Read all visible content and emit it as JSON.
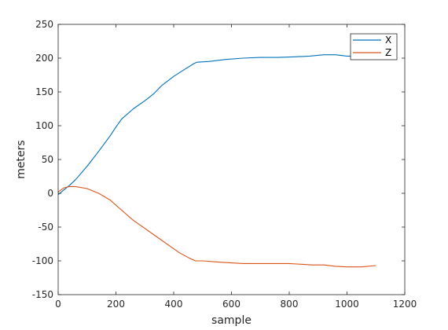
{
  "chart_data": {
    "type": "line",
    "xlabel": "sample",
    "ylabel": "meters",
    "xlim": [
      0,
      1200
    ],
    "ylim": [
      -150,
      250
    ],
    "xticks": [
      0,
      200,
      400,
      600,
      800,
      1000,
      1200
    ],
    "yticks": [
      -150,
      -100,
      -50,
      0,
      50,
      100,
      150,
      200,
      250
    ],
    "grid": false,
    "legend_position": "top-right",
    "series": [
      {
        "name": "X",
        "color": "#0072BD",
        "x": [
          0,
          20,
          40,
          60,
          100,
          140,
          180,
          200,
          220,
          260,
          300,
          330,
          360,
          400,
          440,
          470,
          480,
          520,
          580,
          640,
          700,
          760,
          820,
          870,
          920,
          960,
          1000,
          1050,
          1100
        ],
        "y": [
          -2,
          5,
          12,
          20,
          40,
          62,
          85,
          98,
          110,
          125,
          137,
          147,
          160,
          173,
          184,
          192,
          194,
          195,
          198,
          200,
          201,
          201,
          202,
          203,
          205,
          205,
          203,
          203,
          204
        ]
      },
      {
        "name": "Z",
        "color": "#D95319",
        "x": [
          0,
          20,
          40,
          60,
          100,
          140,
          180,
          220,
          260,
          300,
          340,
          380,
          420,
          450,
          475,
          500,
          560,
          640,
          720,
          800,
          880,
          920,
          960,
          1000,
          1050,
          1100
        ],
        "y": [
          2,
          8,
          10,
          10,
          7,
          0,
          -10,
          -25,
          -40,
          -52,
          -64,
          -76,
          -88,
          -95,
          -100,
          -100,
          -102,
          -104,
          -104,
          -104,
          -106,
          -106,
          -108,
          -109,
          -109,
          -107
        ]
      }
    ]
  }
}
